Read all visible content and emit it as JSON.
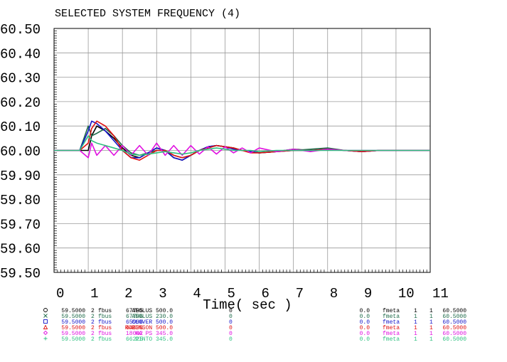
{
  "chart_data": {
    "type": "line",
    "title": "SELECTED SYSTEM FREQUENCY (4)",
    "x_label": "Time( sec )",
    "xlim": [
      0,
      11
    ],
    "xticks": [
      0,
      1,
      2,
      3,
      4,
      5,
      6,
      7,
      8,
      9,
      10,
      11
    ],
    "ylim": [
      59.5,
      60.5
    ],
    "yticks": [
      {
        "value": 59.5,
        "label": "59.50"
      },
      {
        "value": 59.6,
        "label": "59.60"
      },
      {
        "value": 59.7,
        "label": "59.70"
      },
      {
        "value": 59.8,
        "label": "59.80"
      },
      {
        "value": 59.9,
        "label": "59.90"
      },
      {
        "value": 60.0,
        "label": "60.00"
      },
      {
        "value": 60.1,
        "label": "60.10"
      },
      {
        "value": 60.2,
        "label": "60.20"
      },
      {
        "value": 60.3,
        "label": "60.30"
      },
      {
        "value": 60.4,
        "label": "60.40"
      },
      {
        "value": 60.5,
        "label": "60.50"
      }
    ],
    "grid": true,
    "x": [
      0,
      0.25,
      0.5,
      0.75,
      1.0,
      1.1,
      1.25,
      1.5,
      1.75,
      2.0,
      2.25,
      2.5,
      2.75,
      3.0,
      3.25,
      3.5,
      3.75,
      4.0,
      4.25,
      4.5,
      4.75,
      5.0,
      5.25,
      5.5,
      5.75,
      6.0,
      6.5,
      7,
      7.5,
      8,
      8.5,
      9,
      9.5,
      10,
      10.5,
      11
    ],
    "series": [
      {
        "name": "AEOLUS 500.0",
        "color": "#000000",
        "marker": "circle",
        "legend_left": [
          "59.5000",
          "2",
          "fbus",
          "67795"
        ],
        "legend_right": [
          "0",
          "0.0",
          "fmeta",
          "1",
          "1",
          "60.5000"
        ],
        "values": [
          60,
          60,
          60,
          60,
          60.0,
          60.06,
          60.1,
          60.08,
          60.05,
          60.01,
          59.98,
          59.97,
          59.99,
          60.01,
          60.0,
          59.97,
          59.96,
          59.98,
          60.0,
          60.015,
          60.02,
          60.015,
          60.01,
          60.0,
          59.995,
          59.99,
          59.995,
          60.005,
          60.0,
          60.005,
          60.0,
          59.995,
          60.0,
          60.0,
          60.0,
          60.0
        ]
      },
      {
        "name": "AEOLUS 230.0",
        "color": "#1f6b4a",
        "marker": "x",
        "legend_left": [
          "59.5000",
          "2",
          "fbus",
          "67796"
        ],
        "legend_right": [
          "0",
          "0.0",
          "fmeta",
          "1",
          "1",
          "60.5000"
        ],
        "values": [
          60,
          60,
          60,
          60,
          60.1,
          60.06,
          60.07,
          60.09,
          60.06,
          60.02,
          59.99,
          59.98,
          59.99,
          60.0,
          60.0,
          59.98,
          59.97,
          59.98,
          60.0,
          60.01,
          60.02,
          60.015,
          60.01,
          60.0,
          59.995,
          59.99,
          59.995,
          60.0,
          60.005,
          60.01,
          60.0,
          59.995,
          60.0,
          60.0,
          60.0,
          60.0
        ]
      },
      {
        "name": "CLOVER 500.0",
        "color": "#1515c8",
        "marker": "square",
        "legend_left": [
          "59.5000",
          "2",
          "fbus",
          "65996"
        ],
        "legend_right": [
          "0",
          "0.0",
          "fmeta",
          "1",
          "1",
          "60.5000"
        ],
        "values": [
          60,
          60,
          60,
          60,
          60.08,
          60.12,
          60.11,
          60.08,
          60.04,
          60.0,
          59.97,
          59.97,
          59.99,
          60.01,
          60.0,
          59.97,
          59.96,
          59.98,
          60.0,
          60.015,
          60.02,
          60.015,
          60.005,
          60.0,
          59.995,
          59.99,
          59.995,
          60.0,
          60.0,
          60.005,
          60.0,
          59.995,
          60.0,
          60.0,
          60.0,
          60.0
        ]
      },
      {
        "name": "ROBINSON 500.0",
        "color": "#e01010",
        "marker": "triangle",
        "legend_left": [
          "59.5000",
          "2",
          "fbus",
          "64895"
        ],
        "legend_right": [
          "0",
          "0.0",
          "fmeta",
          "1",
          "1",
          "60.5000"
        ],
        "values": [
          60,
          60,
          60,
          60,
          60.03,
          60.09,
          60.12,
          60.1,
          60.06,
          60.0,
          59.97,
          59.96,
          59.98,
          60.0,
          60.0,
          59.98,
          59.97,
          59.98,
          60.0,
          60.01,
          60.02,
          60.015,
          60.01,
          60.0,
          59.99,
          59.99,
          59.995,
          60.0,
          60.0,
          60.005,
          60.0,
          59.995,
          60.0,
          60.0,
          60.0,
          60.0
        ]
      },
      {
        "name": "HA PS 345.0",
        "color": "#e010e0",
        "marker": "diamond",
        "legend_left": [
          "59.5000",
          "2",
          "fbus",
          "18002"
        ],
        "legend_right": [
          "0",
          "0.0",
          "fmeta",
          "1",
          "1",
          "60.5000"
        ],
        "values": [
          60,
          60,
          60,
          60,
          59.97,
          60.03,
          59.98,
          60.02,
          59.98,
          60.02,
          59.98,
          60.02,
          59.98,
          60.03,
          59.98,
          60.02,
          59.98,
          60.02,
          59.985,
          60.015,
          59.985,
          60.015,
          59.99,
          60.01,
          59.99,
          60.01,
          59.995,
          60.005,
          59.995,
          60.005,
          60.0,
          60.0,
          60.0,
          60.0,
          60.0,
          60.0
        ]
      },
      {
        "name": "PINTO 345.0",
        "color": "#30c080",
        "marker": "plus",
        "legend_left": [
          "59.5000",
          "2",
          "fbus",
          "66225"
        ],
        "legend_right": [
          "0",
          "0.0",
          "fmeta",
          "1",
          "1",
          "60.5000"
        ],
        "values": [
          60,
          60,
          60,
          60,
          60.06,
          60.04,
          60.03,
          60.02,
          60.01,
          60.0,
          59.985,
          59.98,
          59.985,
          59.99,
          59.995,
          59.99,
          59.985,
          59.99,
          60.0,
          60.005,
          60.01,
          60.005,
          60.0,
          60.0,
          60.0,
          59.995,
          60.0,
          60.0,
          60.0,
          60.0,
          60.0,
          60.0,
          60.0,
          60.0,
          60.0,
          60.0
        ]
      }
    ]
  }
}
